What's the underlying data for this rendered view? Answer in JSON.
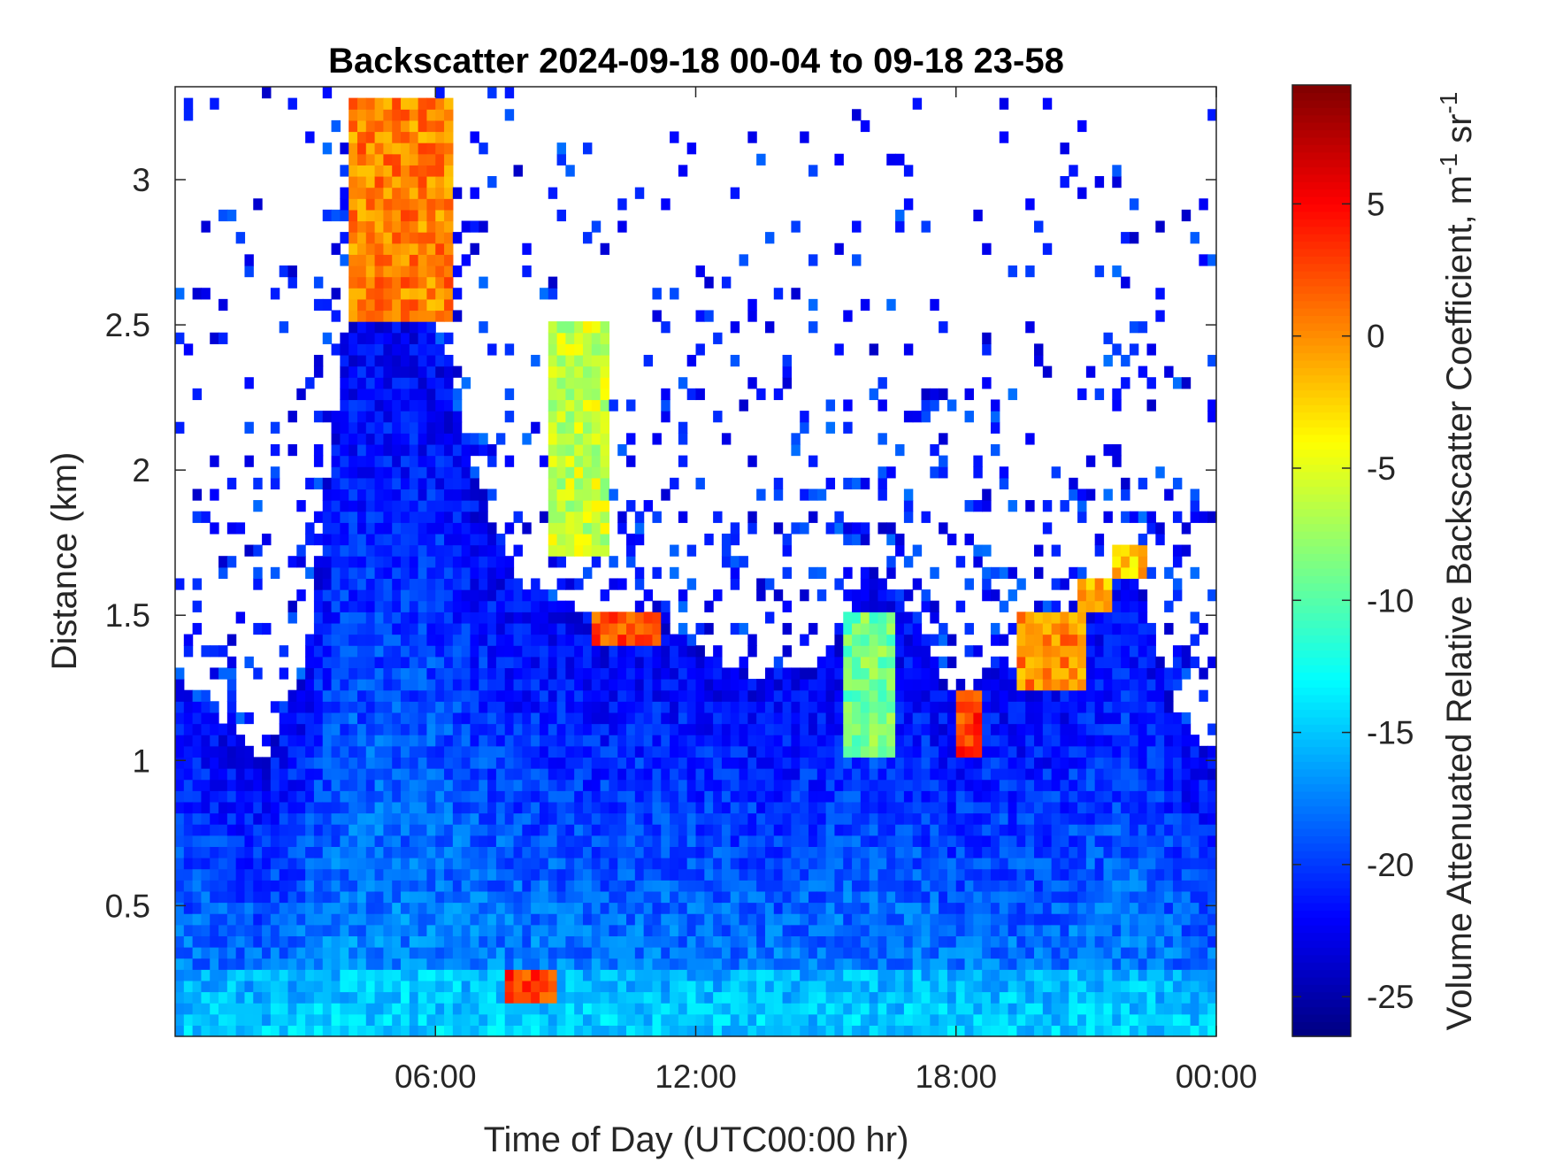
{
  "chart_data": {
    "type": "heatmap",
    "title": "Backscatter 2024-09-18 00-04 to 09-18 23-58",
    "xlabel": "Time of Day (UTC00:00 hr)",
    "ylabel": "Distance (km)",
    "colorbar_label": "Volume Attenuated Relative Backscatter Coefficient, m",
    "colorbar_label_units": [
      {
        "base": "-1",
        "role": "superscript"
      },
      {
        "base": " sr",
        "role": "text"
      },
      {
        "base": "-1",
        "role": "superscript"
      }
    ],
    "xlim_hours": [
      0,
      24
    ],
    "ylim_km": [
      0.05,
      3.32
    ],
    "clim": [
      -26.5,
      9.5
    ],
    "colormap": "jet",
    "grid": false,
    "x_ticks": [
      {
        "value": 6,
        "label": "06:00"
      },
      {
        "value": 12,
        "label": "12:00"
      },
      {
        "value": 18,
        "label": "18:00"
      },
      {
        "value": 24,
        "label": "00:00"
      }
    ],
    "y_ticks": [
      {
        "value": 0.5,
        "label": "0.5"
      },
      {
        "value": 1,
        "label": "1"
      },
      {
        "value": 1.5,
        "label": "1.5"
      },
      {
        "value": 2,
        "label": "2"
      },
      {
        "value": 2.5,
        "label": "2.5"
      },
      {
        "value": 3,
        "label": "3"
      }
    ],
    "colorbar_ticks": [
      {
        "value": -25,
        "label": "-25"
      },
      {
        "value": -20,
        "label": "-20"
      },
      {
        "value": -15,
        "label": "-15"
      },
      {
        "value": -10,
        "label": "-10"
      },
      {
        "value": -5,
        "label": "-5"
      },
      {
        "value": 0,
        "label": "0"
      },
      {
        "value": 5,
        "label": "5"
      }
    ],
    "boundary_layer_top_km": {
      "hours": [
        0,
        1,
        2,
        3,
        4,
        5,
        6,
        7,
        8,
        9,
        10,
        11,
        12,
        13,
        14,
        15,
        16,
        17,
        18,
        19,
        20,
        21,
        22,
        23,
        24
      ],
      "values": [
        1.28,
        1.15,
        1.0,
        1.3,
        2.6,
        2.5,
        2.5,
        1.9,
        1.6,
        1.55,
        1.45,
        1.5,
        1.4,
        1.3,
        1.3,
        1.35,
        1.7,
        1.5,
        1.2,
        1.35,
        1.25,
        1.5,
        1.75,
        1.2,
        1.0
      ]
    },
    "cloud_layers": [
      {
        "t0": 4.0,
        "t1": 6.4,
        "h0": 2.5,
        "h1": 3.3,
        "value": 0.5
      },
      {
        "t0": 8.7,
        "t1": 10.0,
        "h0": 1.7,
        "h1": 2.5,
        "value": -6
      },
      {
        "t0": 9.6,
        "t1": 11.2,
        "h0": 1.38,
        "h1": 1.53,
        "value": 2
      },
      {
        "t0": 15.5,
        "t1": 16.6,
        "h0": 1.0,
        "h1": 1.5,
        "value": -9
      },
      {
        "t0": 18.0,
        "t1": 18.6,
        "h0": 1.03,
        "h1": 1.25,
        "value": 3
      },
      {
        "t0": 19.5,
        "t1": 21.0,
        "h0": 1.25,
        "h1": 1.5,
        "value": 0
      },
      {
        "t0": 20.8,
        "t1": 21.7,
        "h0": 1.5,
        "h1": 1.62,
        "value": -1
      },
      {
        "t0": 21.7,
        "t1": 22.4,
        "h0": 1.62,
        "h1": 1.75,
        "value": -2
      },
      {
        "t0": 7.6,
        "t1": 8.8,
        "h0": 0.18,
        "h1": 0.27,
        "value": 3
      }
    ]
  }
}
